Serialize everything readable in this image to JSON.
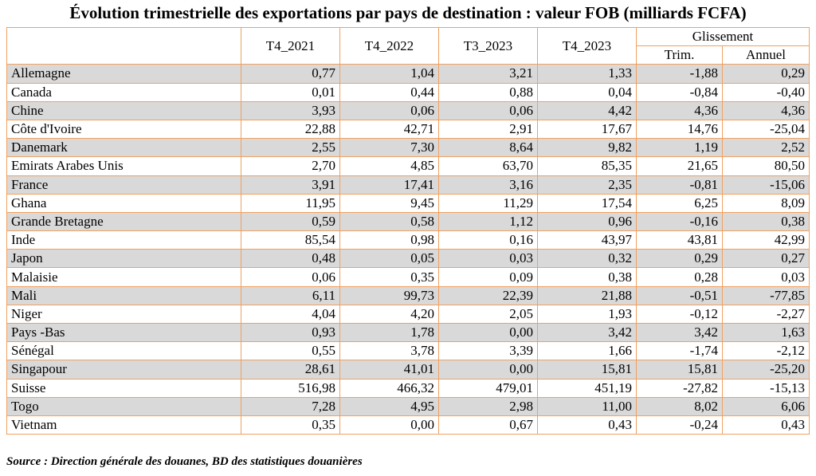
{
  "title": "Évolution trimestrielle des exportations par pays de destination : valeur FOB (milliards FCFA)",
  "headers": {
    "periods": [
      "T4_2021",
      "T4_2022",
      "T3_2023",
      "T4_2023"
    ],
    "glissement": "Glissement",
    "trim": "Trim.",
    "annuel": "Annuel"
  },
  "rows": [
    {
      "country": "Allemagne",
      "values": [
        "0,77",
        "1,04",
        "3,21",
        "1,33",
        "-1,88",
        "0,29"
      ]
    },
    {
      "country": "Canada",
      "values": [
        "0,01",
        "0,44",
        "0,88",
        "0,04",
        "-0,84",
        "-0,40"
      ]
    },
    {
      "country": "Chine",
      "values": [
        "3,93",
        "0,06",
        "0,06",
        "4,42",
        "4,36",
        "4,36"
      ]
    },
    {
      "country": "Côte d'Ivoire",
      "values": [
        "22,88",
        "42,71",
        "2,91",
        "17,67",
        "14,76",
        "-25,04"
      ]
    },
    {
      "country": "Danemark",
      "values": [
        "2,55",
        "7,30",
        "8,64",
        "9,82",
        "1,19",
        "2,52"
      ]
    },
    {
      "country": "Emirats Arabes Unis",
      "values": [
        "2,70",
        "4,85",
        "63,70",
        "85,35",
        "21,65",
        "80,50"
      ]
    },
    {
      "country": "France",
      "values": [
        "3,91",
        "17,41",
        "3,16",
        "2,35",
        "-0,81",
        "-15,06"
      ]
    },
    {
      "country": "Ghana",
      "values": [
        "11,95",
        "9,45",
        "11,29",
        "17,54",
        "6,25",
        "8,09"
      ]
    },
    {
      "country": "Grande Bretagne",
      "values": [
        "0,59",
        "0,58",
        "1,12",
        "0,96",
        "-0,16",
        "0,38"
      ]
    },
    {
      "country": "Inde",
      "values": [
        "85,54",
        "0,98",
        "0,16",
        "43,97",
        "43,81",
        "42,99"
      ]
    },
    {
      "country": "Japon",
      "values": [
        "0,48",
        "0,05",
        "0,03",
        "0,32",
        "0,29",
        "0,27"
      ]
    },
    {
      "country": "Malaisie",
      "values": [
        "0,06",
        "0,35",
        "0,09",
        "0,38",
        "0,28",
        "0,03"
      ]
    },
    {
      "country": "Mali",
      "values": [
        "6,11",
        "99,73",
        "22,39",
        "21,88",
        "-0,51",
        "-77,85"
      ]
    },
    {
      "country": "Niger",
      "values": [
        "4,04",
        "4,20",
        "2,05",
        "1,93",
        "-0,12",
        "-2,27"
      ]
    },
    {
      "country": "Pays -Bas",
      "values": [
        "0,93",
        "1,78",
        "0,00",
        "3,42",
        "3,42",
        "1,63"
      ]
    },
    {
      "country": "Sénégal",
      "values": [
        "0,55",
        "3,78",
        "3,39",
        "1,66",
        "-1,74",
        "-2,12"
      ]
    },
    {
      "country": "Singapour",
      "values": [
        "28,61",
        "41,01",
        "0,00",
        "15,81",
        "15,81",
        "-25,20"
      ]
    },
    {
      "country": "Suisse",
      "values": [
        "516,98",
        "466,32",
        "479,01",
        "451,19",
        "-27,82",
        "-15,13"
      ]
    },
    {
      "country": "Togo",
      "values": [
        "7,28",
        "4,95",
        "2,98",
        "11,00",
        "8,02",
        "6,06"
      ]
    },
    {
      "country": "Vietnam",
      "values": [
        "0,35",
        "0,00",
        "0,67",
        "0,43",
        "-0,24",
        "0,43"
      ]
    }
  ],
  "source": "Source : Direction générale des douanes, BD des statistiques douanières"
}
